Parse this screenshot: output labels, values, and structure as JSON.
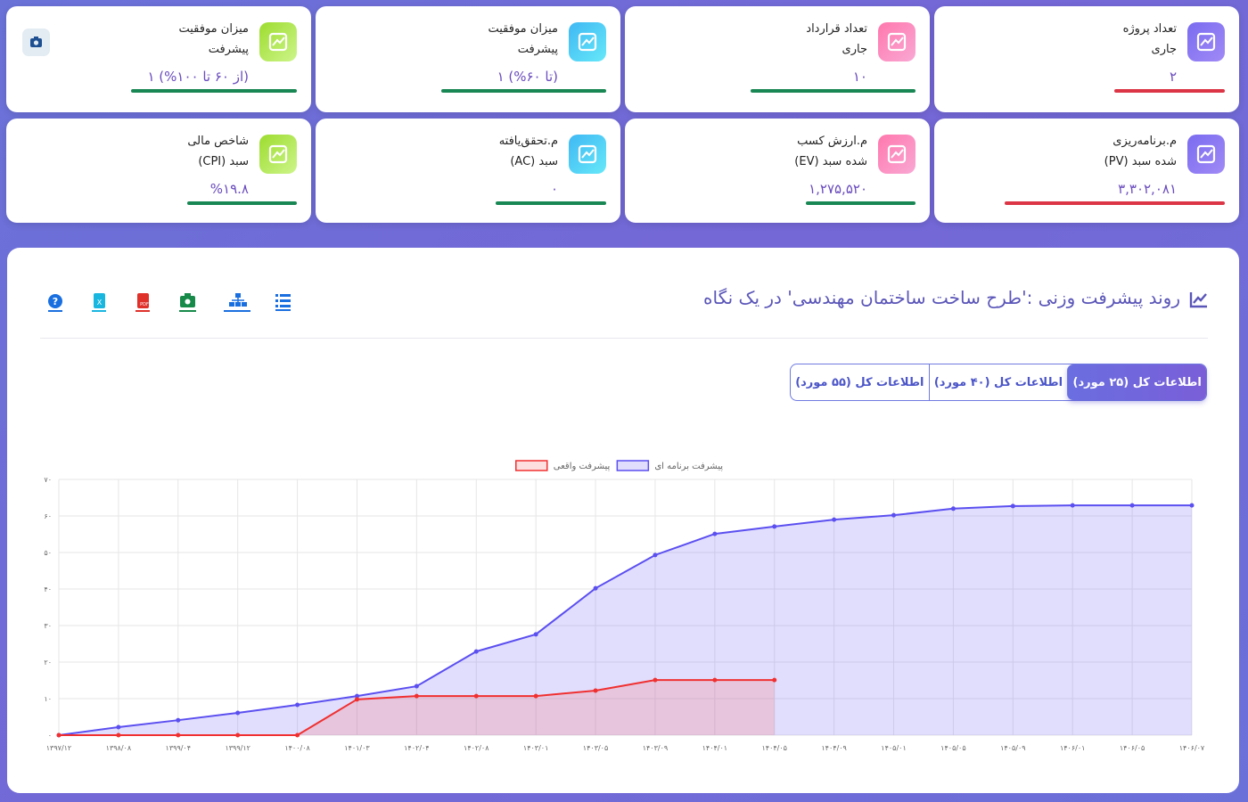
{
  "cards": [
    {
      "title_lines": [
        "تعداد پروژه",
        "جاری"
      ],
      "value": "۲",
      "bar_color": "#dc3545"
    },
    {
      "title_lines": [
        "تعداد قرارداد",
        "جاری"
      ],
      "value": "۱۰",
      "bar_color": "#198754"
    },
    {
      "title_lines": [
        "میزان موفقیت",
        "پیشرفت"
      ],
      "value": "(تا ۶۰%) ۱",
      "bar_color": "#198754"
    },
    {
      "title_lines": [
        "میزان موفقیت",
        "پیشرفت"
      ],
      "value": "(از ۶۰ تا ۱۰۰%) ۱",
      "bar_color": "#198754"
    },
    {
      "title_lines": [
        "م.برنامه‌ریزی",
        "شده سبد (PV)"
      ],
      "value": "۳,۳۰۲,۰۸۱",
      "bar_color": "#dc3545"
    },
    {
      "title_lines": [
        "م.ارزش کسب",
        "شده سبد (EV)"
      ],
      "value": "۱,۲۷۵,۵۲۰",
      "bar_color": "#198754"
    },
    {
      "title_lines": [
        "م.تحقق‌یافته",
        "سبد (AC)"
      ],
      "value": "۰",
      "bar_color": "#198754"
    },
    {
      "title_lines": [
        "شاخص مالی",
        "سبد (CPI)"
      ],
      "value": "%۱۹.۸",
      "bar_color": "#198754"
    }
  ],
  "tabs": [
    "اطلاعات کل (۲۵ مورد)",
    "اطلاعات کل (۴۰ مورد)",
    "اطلاعات کل (۵۵ مورد)"
  ],
  "chart_data": {
    "type": "line",
    "title": "روند پیشرفت وزنی :'طرح ساخت ساختمان مهندسی' در یک نگاه",
    "categories": [
      "۱۳۹۷/۱۲",
      "۱۳۹۸/۰۸",
      "۱۳۹۹/۰۴",
      "۱۳۹۹/۱۲",
      "۱۴۰۰/۰۸",
      "۱۴۰۱/۰۳",
      "۱۴۰۲/۰۴",
      "۱۴۰۲/۰۸",
      "۱۴۰۳/۰۱",
      "۱۴۰۳/۰۵",
      "۱۴۰۳/۰۹",
      "۱۴۰۴/۰۱",
      "۱۴۰۴/۰۵",
      "۱۴۰۴/۰۹",
      "۱۴۰۵/۰۱",
      "۱۴۰۵/۰۵",
      "۱۴۰۵/۰۹",
      "۱۴۰۶/۰۱",
      "۱۴۰۶/۰۵",
      "۱۴۰۶/۰۷"
    ],
    "series": [
      {
        "name": "پیشرفت برنامه ای",
        "color": "#5b4ff0",
        "values": [
          0,
          2.2,
          4.1,
          6.1,
          8.3,
          10.7,
          13.4,
          22.9,
          27.6,
          40.2,
          49.3,
          55.1,
          57.1,
          59.0,
          60.2,
          62.0,
          62.7,
          62.9,
          62.9,
          62.9
        ]
      },
      {
        "name": "پیشرفت واقعی",
        "color": "#f03030",
        "values": [
          0,
          0,
          0,
          0,
          0,
          9.8,
          10.7,
          10.7,
          10.7,
          12.2,
          15.1,
          15.1,
          15.1,
          null,
          null,
          null,
          null,
          null,
          null,
          null
        ]
      }
    ],
    "ylim": [
      0,
      70
    ],
    "yticks": [
      {
        "value": 0,
        "label": "۰"
      },
      {
        "value": 10,
        "label": "۱۰"
      },
      {
        "value": 20,
        "label": "۲۰"
      },
      {
        "value": 30,
        "label": "۳۰"
      },
      {
        "value": 40,
        "label": "۴۰"
      },
      {
        "value": 50,
        "label": "۵۰"
      },
      {
        "value": 60,
        "label": "۶۰"
      },
      {
        "value": 70,
        "label": "۷۰"
      }
    ],
    "grid": true
  }
}
